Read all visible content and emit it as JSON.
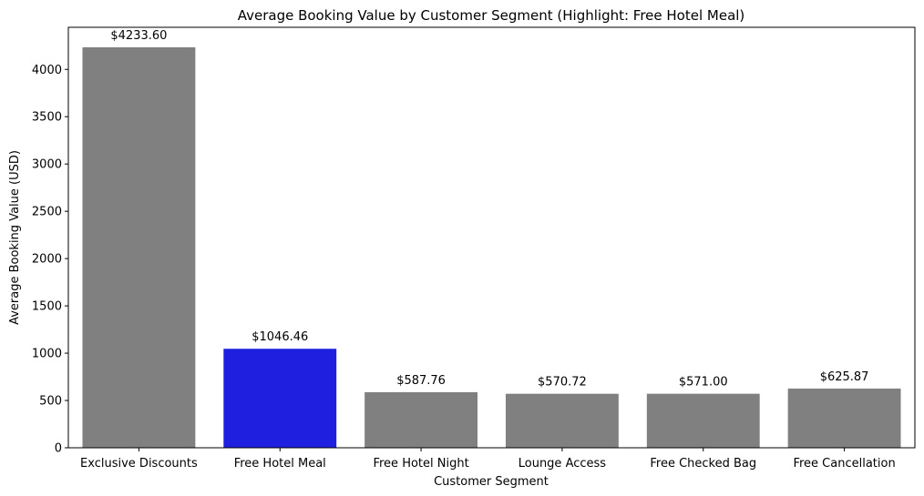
{
  "chart_data": {
    "type": "bar",
    "title": "Average Booking Value by Customer Segment (Highlight: Free Hotel Meal)",
    "xlabel": "Customer Segment",
    "ylabel": "Average Booking Value (USD)",
    "categories": [
      "Exclusive Discounts",
      "Free Hotel Meal",
      "Free Hotel Night",
      "Lounge Access",
      "Free Checked Bag",
      "Free Cancellation"
    ],
    "values": [
      4233.6,
      1046.46,
      587.76,
      570.72,
      571.0,
      625.87
    ],
    "data_labels": [
      "$4233.60",
      "$1046.46",
      "$587.76",
      "$570.72",
      "$571.00",
      "$625.87"
    ],
    "highlight": "Free Hotel Meal",
    "colors": {
      "default": "#808080",
      "highlight": "#1f1fe0"
    },
    "ylim": [
      0,
      4445
    ],
    "yticks": [
      0,
      500,
      1000,
      1500,
      2000,
      2500,
      3000,
      3500,
      4000
    ],
    "grid": false,
    "legend": "none"
  }
}
